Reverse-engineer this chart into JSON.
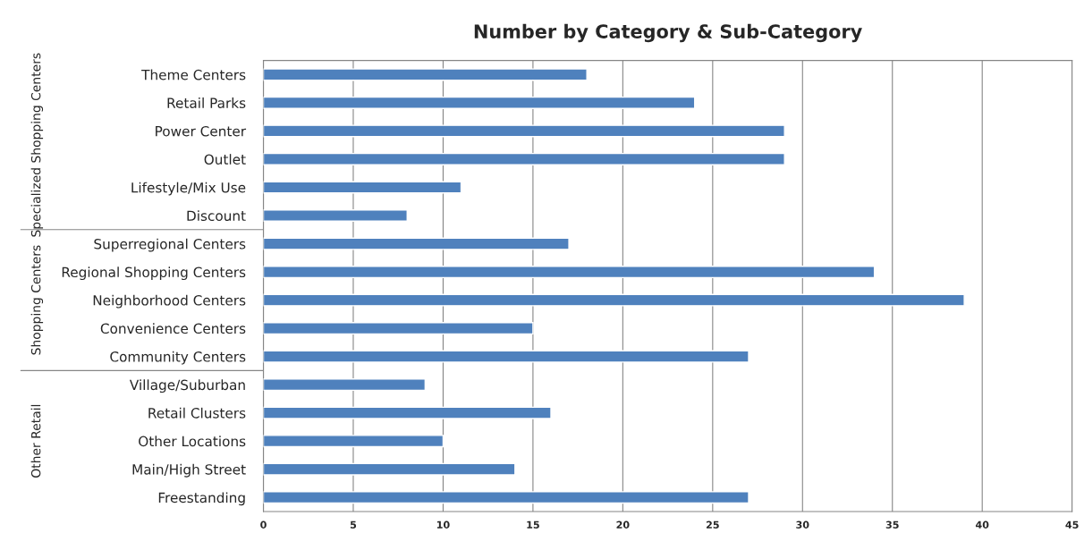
{
  "chart_data": {
    "type": "bar",
    "orientation": "horizontal",
    "title": "Number by Category & Sub-Category",
    "categories": [
      "Theme Centers",
      "Retail Parks",
      "Power Center",
      "Outlet",
      "Lifestyle/Mix Use",
      "Discount",
      "Superregional Centers",
      "Regional Shopping Centers",
      "Neighborhood Centers",
      "Convenience Centers",
      "Community Centers",
      "Village/Suburban",
      "Retail Clusters",
      "Other Locations",
      "Main/High Street",
      "Freestanding"
    ],
    "values": [
      18,
      24,
      29,
      29,
      11,
      8,
      17,
      34,
      39,
      15,
      27,
      9,
      16,
      10,
      14,
      27
    ],
    "color": "#4f81bd",
    "xlim": [
      0,
      45
    ],
    "xticks": [
      0,
      5,
      10,
      15,
      20,
      25,
      30,
      35,
      40,
      45
    ],
    "grid": "x",
    "legend": false,
    "annotations": [
      "Specialized Shopping Centers",
      "Shopping Centers",
      "Other Retail"
    ]
  }
}
